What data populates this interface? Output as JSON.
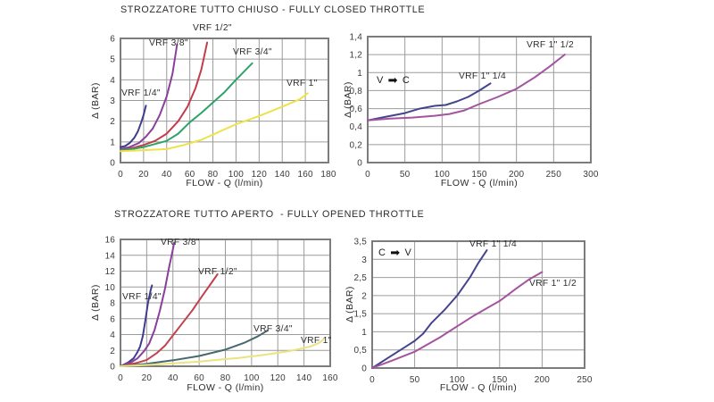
{
  "chart_data": [
    {
      "id": "closed-throttle-small",
      "type": "line",
      "title": "STROZZATORE TUTTO CHIUSO - FULLY CLOSED THROTTLE",
      "xlabel": "FLOW - Q (l/min)",
      "ylabel": "Δ (BAR)",
      "xlim": [
        0,
        180
      ],
      "xstep": 20,
      "ylim": [
        0,
        6
      ],
      "ystep": 1,
      "x_ticks": [
        "0",
        "20",
        "40",
        "60",
        "80",
        "100",
        "120",
        "140",
        "160",
        "180"
      ],
      "y_ticks": [
        "0",
        "1",
        "2",
        "3",
        "4",
        "5",
        "6"
      ],
      "grid": true,
      "legend_position": "inline-labels",
      "series": [
        {
          "name": "VRF 1/4\"",
          "color": "#3d3d8f",
          "points": [
            [
              0,
              0.75
            ],
            [
              4,
              0.8
            ],
            [
              8,
              0.95
            ],
            [
              12,
              1.2
            ],
            [
              15,
              1.5
            ],
            [
              18,
              1.95
            ],
            [
              20,
              2.3
            ],
            [
              22,
              2.75
            ]
          ]
        },
        {
          "name": "VRF 3/8\"",
          "color": "#8b3f9c",
          "points": [
            [
              0,
              0.65
            ],
            [
              8,
              0.75
            ],
            [
              16,
              0.95
            ],
            [
              22,
              1.25
            ],
            [
              28,
              1.65
            ],
            [
              34,
              2.3
            ],
            [
              40,
              3.2
            ],
            [
              45,
              4.3
            ],
            [
              49,
              5.7
            ]
          ]
        },
        {
          "name": "VRF 1/2\"",
          "color": "#c23c4b",
          "points": [
            [
              0,
              0.6
            ],
            [
              10,
              0.7
            ],
            [
              20,
              0.85
            ],
            [
              30,
              1.05
            ],
            [
              40,
              1.4
            ],
            [
              50,
              2.0
            ],
            [
              58,
              2.7
            ],
            [
              65,
              3.6
            ],
            [
              70,
              4.5
            ],
            [
              75,
              5.8
            ]
          ]
        },
        {
          "name": "VRF 3/4\"",
          "color": "#2fa268",
          "points": [
            [
              0,
              0.6
            ],
            [
              10,
              0.65
            ],
            [
              20,
              0.75
            ],
            [
              30,
              0.9
            ],
            [
              40,
              1.05
            ],
            [
              50,
              1.4
            ],
            [
              60,
              1.95
            ],
            [
              70,
              2.4
            ],
            [
              80,
              2.9
            ],
            [
              90,
              3.4
            ],
            [
              100,
              4.0
            ],
            [
              107,
              4.4
            ],
            [
              114,
              4.8
            ]
          ]
        },
        {
          "name": "VRF 1\"",
          "color": "#efe14c",
          "points": [
            [
              0,
              0.55
            ],
            [
              20,
              0.6
            ],
            [
              40,
              0.65
            ],
            [
              55,
              0.85
            ],
            [
              70,
              1.1
            ],
            [
              80,
              1.35
            ],
            [
              100,
              1.85
            ],
            [
              120,
              2.25
            ],
            [
              140,
              2.7
            ],
            [
              155,
              3.05
            ],
            [
              162,
              3.35
            ]
          ]
        }
      ]
    },
    {
      "id": "closed-throttle-large",
      "type": "line",
      "title": "",
      "xlabel": "FLOW - Q (l/min)",
      "ylabel": "Δ (BAR)",
      "xlim": [
        0,
        300
      ],
      "xstep": 50,
      "ylim": [
        0,
        1.4
      ],
      "ystep": 0.2,
      "x_ticks": [
        "0",
        "50",
        "100",
        "150",
        "200",
        "250",
        "300"
      ],
      "y_ticks": [
        "0",
        "0,2",
        "0,4",
        "0,6",
        "0,8",
        "1",
        "1,2",
        "1,4"
      ],
      "grid": true,
      "legend_position": "inline-labels",
      "annotation": {
        "left": "V",
        "arrow": "➡",
        "right": "C"
      },
      "series": [
        {
          "name": "VRF 1\" 1/4",
          "color": "#44448e",
          "points": [
            [
              0,
              0.47
            ],
            [
              25,
              0.51
            ],
            [
              50,
              0.55
            ],
            [
              70,
              0.6
            ],
            [
              90,
              0.63
            ],
            [
              105,
              0.64
            ],
            [
              120,
              0.68
            ],
            [
              135,
              0.73
            ],
            [
              150,
              0.8
            ],
            [
              165,
              0.88
            ]
          ]
        },
        {
          "name": "VRF 1\" 1/2",
          "color": "#a4549e",
          "points": [
            [
              0,
              0.47
            ],
            [
              30,
              0.49
            ],
            [
              60,
              0.5
            ],
            [
              90,
              0.52
            ],
            [
              110,
              0.54
            ],
            [
              130,
              0.58
            ],
            [
              150,
              0.65
            ],
            [
              175,
              0.73
            ],
            [
              200,
              0.82
            ],
            [
              225,
              0.95
            ],
            [
              245,
              1.07
            ],
            [
              265,
              1.2
            ]
          ]
        }
      ]
    },
    {
      "id": "opened-throttle-small",
      "type": "line",
      "title": "STROZZATORE TUTTO APERTO  - FULLY OPENED THROTTLE",
      "xlabel": "FLOW - Q (l/min)",
      "ylabel": "Δ (BAR)",
      "xlim": [
        0,
        160
      ],
      "xstep": 20,
      "ylim": [
        0,
        16
      ],
      "ystep": 2,
      "x_ticks": [
        "0",
        "20",
        "40",
        "60",
        "80",
        "100",
        "120",
        "140",
        "160"
      ],
      "y_ticks": [
        "0",
        "2",
        "4",
        "6",
        "8",
        "10",
        "12",
        "14",
        "16"
      ],
      "grid": true,
      "legend_position": "inline-labels",
      "series": [
        {
          "name": "VRF 1/4\"",
          "color": "#3d3d8f",
          "points": [
            [
              0,
              0
            ],
            [
              6,
              0.5
            ],
            [
              10,
              1.0
            ],
            [
              13,
              1.8
            ],
            [
              15,
              2.5
            ],
            [
              17,
              3.8
            ],
            [
              19,
              5.8
            ],
            [
              21,
              8.0
            ],
            [
              23,
              9.6
            ],
            [
              24,
              10.2
            ]
          ]
        },
        {
          "name": "VRF 3/8\"",
          "color": "#8b3f9c",
          "points": [
            [
              0,
              0
            ],
            [
              8,
              0.5
            ],
            [
              13,
              1.0
            ],
            [
              18,
              1.9
            ],
            [
              22,
              2.9
            ],
            [
              26,
              4.6
            ],
            [
              30,
              7.0
            ],
            [
              34,
              9.8
            ],
            [
              37,
              12.4
            ],
            [
              40,
              14.8
            ],
            [
              41,
              15.6
            ]
          ]
        },
        {
          "name": "VRF 1/2\"",
          "color": "#c2424e",
          "points": [
            [
              0,
              0
            ],
            [
              12,
              0.4
            ],
            [
              20,
              0.8
            ],
            [
              28,
              1.7
            ],
            [
              34,
              2.6
            ],
            [
              40,
              3.9
            ],
            [
              48,
              5.6
            ],
            [
              55,
              7.1
            ],
            [
              62,
              8.8
            ],
            [
              68,
              10.2
            ],
            [
              74,
              11.6
            ]
          ]
        },
        {
          "name": "VRF 3/4\"",
          "color": "#46696e",
          "points": [
            [
              0,
              0
            ],
            [
              20,
              0.3
            ],
            [
              40,
              0.75
            ],
            [
              60,
              1.3
            ],
            [
              80,
              2.1
            ],
            [
              95,
              3.0
            ],
            [
              105,
              3.8
            ],
            [
              112,
              4.5
            ]
          ]
        },
        {
          "name": "VRF 1\"",
          "color": "#e9e47e",
          "points": [
            [
              0,
              0
            ],
            [
              30,
              0.25
            ],
            [
              60,
              0.6
            ],
            [
              90,
              1.05
            ],
            [
              110,
              1.45
            ],
            [
              130,
              1.95
            ],
            [
              145,
              2.5
            ],
            [
              152,
              3.0
            ],
            [
              155,
              3.4
            ]
          ]
        }
      ]
    },
    {
      "id": "opened-throttle-large",
      "type": "line",
      "title": "",
      "xlabel": "FLOW - Q (l/min)",
      "ylabel": "Δ (BAR)",
      "xlim": [
        0,
        250
      ],
      "xstep": 50,
      "ylim": [
        0,
        3.5
      ],
      "ystep": 0.5,
      "x_ticks": [
        "0",
        "50",
        "100",
        "150",
        "200",
        "250"
      ],
      "y_ticks": [
        "0",
        "0,5",
        "1",
        "1,5",
        "2",
        "2,5",
        "3",
        "3,5"
      ],
      "grid": true,
      "legend_position": "inline-labels",
      "annotation": {
        "left": "C",
        "arrow": "➡",
        "right": "V"
      },
      "series": [
        {
          "name": "VRF 1\" 1/4",
          "color": "#44448e",
          "points": [
            [
              0,
              0
            ],
            [
              20,
              0.3
            ],
            [
              40,
              0.6
            ],
            [
              50,
              0.75
            ],
            [
              60,
              0.95
            ],
            [
              70,
              1.25
            ],
            [
              85,
              1.6
            ],
            [
              100,
              2.0
            ],
            [
              115,
              2.5
            ],
            [
              125,
              2.9
            ],
            [
              135,
              3.25
            ]
          ]
        },
        {
          "name": "VRF 1\" 1/2",
          "color": "#a4549e",
          "points": [
            [
              0,
              0
            ],
            [
              25,
              0.22
            ],
            [
              50,
              0.45
            ],
            [
              65,
              0.65
            ],
            [
              80,
              0.85
            ],
            [
              100,
              1.15
            ],
            [
              120,
              1.45
            ],
            [
              140,
              1.72
            ],
            [
              150,
              1.85
            ],
            [
              170,
              2.2
            ],
            [
              185,
              2.45
            ],
            [
              200,
              2.65
            ]
          ]
        }
      ]
    }
  ]
}
